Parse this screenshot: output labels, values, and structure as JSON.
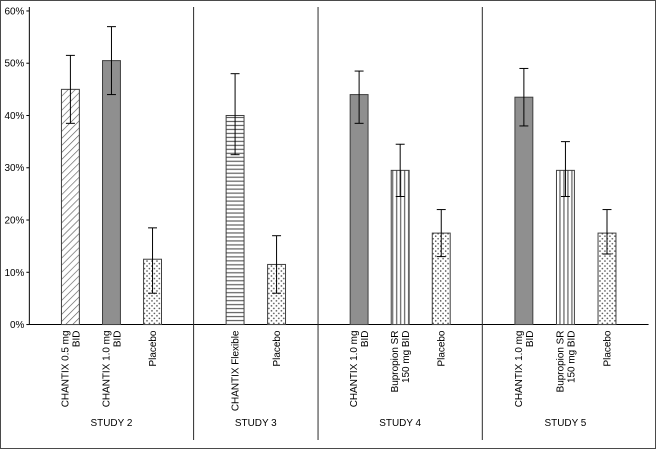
{
  "chart_data": {
    "type": "bar",
    "title": "",
    "xlabel": "",
    "ylabel": "",
    "ylim": [
      0,
      60
    ],
    "yticks": [
      "0%",
      "10%",
      "20%",
      "30%",
      "40%",
      "50%",
      "60%"
    ],
    "ytick_values": [
      0,
      10,
      20,
      30,
      40,
      50,
      60
    ],
    "grid": false,
    "legend_position": "none",
    "error_bars": true,
    "groups": [
      {
        "label": "STUDY 2",
        "bars": [
          {
            "label": "CHANTIX 0.5 mg BID",
            "label_lines": [
              "CHANTIX 0.5 mg",
              "BID"
            ],
            "value": 45,
            "ci_low": 38.5,
            "ci_high": 51.5,
            "pattern": "diagonal-hatch"
          },
          {
            "label": "CHANTIX 1.0 mg BID",
            "label_lines": [
              "CHANTIX 1.0 mg",
              "BID"
            ],
            "value": 50.5,
            "ci_low": 44,
            "ci_high": 57,
            "pattern": "solid-gray"
          },
          {
            "label": "Placebo",
            "label_lines": [
              "Placebo"
            ],
            "value": 12.5,
            "ci_low": 6,
            "ci_high": 18.5,
            "pattern": "dots"
          }
        ]
      },
      {
        "label": "STUDY 3",
        "bars": [
          {
            "label": "CHANTIX Flexible",
            "label_lines": [
              "CHANTIX Flexible"
            ],
            "value": 40,
            "ci_low": 32.5,
            "ci_high": 48,
            "pattern": "horizontal-hatch"
          },
          {
            "label": "Placebo",
            "label_lines": [
              "Placebo"
            ],
            "value": 11.5,
            "ci_low": 6,
            "ci_high": 17,
            "pattern": "dots"
          }
        ]
      },
      {
        "label": "STUDY 4",
        "bars": [
          {
            "label": "CHANTIX 1.0 mg BID",
            "label_lines": [
              "CHANTIX 1.0 mg",
              "BID"
            ],
            "value": 44,
            "ci_low": 38.5,
            "ci_high": 48.5,
            "pattern": "solid-gray"
          },
          {
            "label": "Bupropion SR 150 mg BID",
            "label_lines": [
              "Bupropion SR",
              "150 mg BID"
            ],
            "value": 29.5,
            "ci_low": 24.5,
            "ci_high": 34.5,
            "pattern": "vertical-lines"
          },
          {
            "label": "Placebo",
            "label_lines": [
              "Placebo"
            ],
            "value": 17.5,
            "ci_low": 13,
            "ci_high": 22,
            "pattern": "dots"
          }
        ]
      },
      {
        "label": "STUDY 5",
        "bars": [
          {
            "label": "CHANTIX 1.0 mg BID",
            "label_lines": [
              "CHANTIX 1.0 mg",
              "BID"
            ],
            "value": 43.5,
            "ci_low": 38,
            "ci_high": 49,
            "pattern": "solid-gray"
          },
          {
            "label": "Bupropion SR 150 mg BID",
            "label_lines": [
              "Bupropion SR",
              "150 mg BID"
            ],
            "value": 29.5,
            "ci_low": 24.5,
            "ci_high": 35,
            "pattern": "vertical-lines"
          },
          {
            "label": "Placebo",
            "label_lines": [
              "Placebo"
            ],
            "value": 17.5,
            "ci_low": 13.5,
            "ci_high": 22,
            "pattern": "dots"
          }
        ]
      }
    ],
    "colors": {
      "solid_bar": "#8f8f8f",
      "bar_outline": "#3f3f3f",
      "hatch_line": "#5f5f5f",
      "error_bar": "#000000",
      "axis": "#000000",
      "separator": "#2a2a2a",
      "background": "#ffffff"
    }
  }
}
